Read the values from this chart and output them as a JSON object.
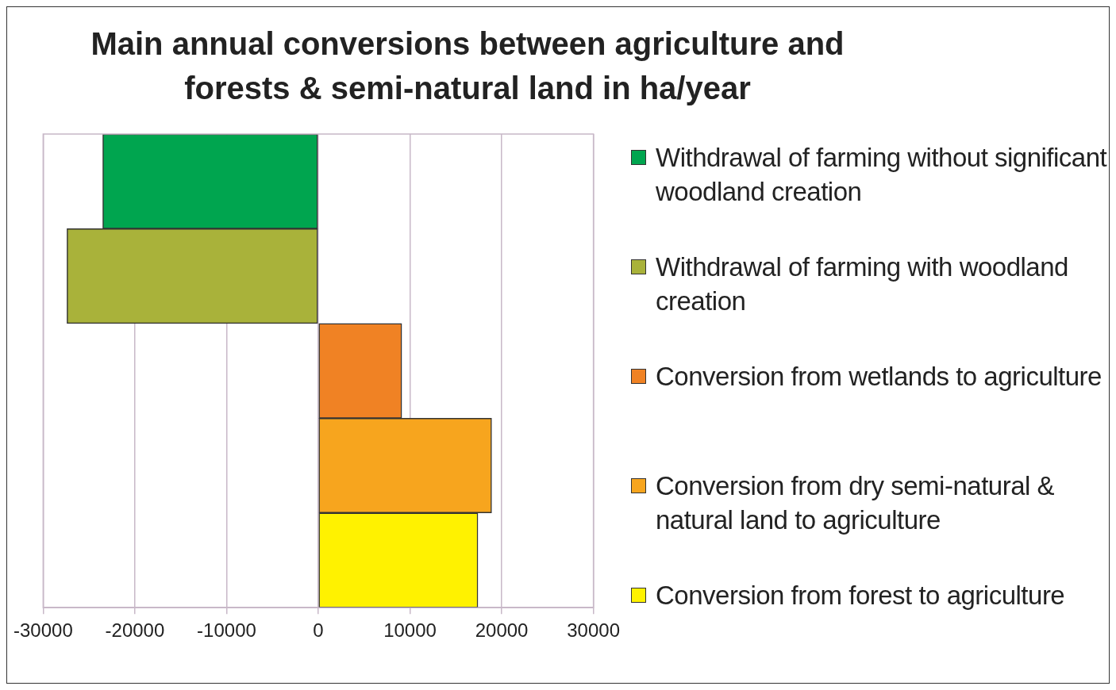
{
  "chart_data": {
    "type": "bar",
    "orientation": "horizontal",
    "stacked": true,
    "title": "Main annual  conversions between agriculture and forests & semi-natural land in ha/year",
    "categories": [
      null,
      null,
      null,
      null,
      null
    ],
    "series": [
      {
        "name": "Withdrawal of farming without significant woodland creation",
        "color": "#00a54f",
        "values": [
          -23500,
          null,
          null,
          null,
          null
        ]
      },
      {
        "name": "Withdrawal of farming with woodland creation",
        "color": "#a9b23a",
        "values": [
          null,
          -27400,
          null,
          null,
          null
        ]
      },
      {
        "name": "Conversion from wetlands to agriculture",
        "color": "#f08224",
        "values": [
          null,
          null,
          9100,
          null,
          null
        ]
      },
      {
        "name": "Conversion from dry semi-natural & natural land to agriculture",
        "color": "#f7a51e",
        "values": [
          null,
          null,
          null,
          18900,
          null
        ]
      },
      {
        "name": "Conversion from forest to agriculture",
        "color": "#fff200",
        "values": [
          null,
          null,
          null,
          null,
          17400
        ]
      }
    ],
    "xlim": [
      -30000,
      30000
    ],
    "xticks": [
      -30000,
      -20000,
      -10000,
      0,
      10000,
      20000,
      30000
    ],
    "grid": "x",
    "legend": "right"
  }
}
